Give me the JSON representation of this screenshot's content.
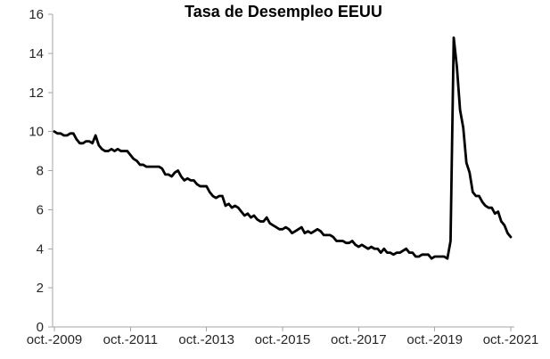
{
  "chart_data": {
    "type": "line",
    "title": "Tasa de Desempleo EEUU",
    "xlabel": "",
    "ylabel": "",
    "grid": false,
    "legend": "none",
    "ylim": [
      0,
      16
    ],
    "y_ticks": [
      0,
      2,
      4,
      6,
      8,
      10,
      12,
      14,
      16
    ],
    "x_tick_labels": [
      "oct.-2009",
      "oct.-2011",
      "oct.-2013",
      "oct.-2015",
      "oct.-2017",
      "oct.-2019",
      "oct.-2021"
    ],
    "x_tick_every_months": 24,
    "x_start": "oct-2009",
    "x_end": "oct-2021",
    "frequency": "monthly",
    "values": [
      10.0,
      9.9,
      9.9,
      9.8,
      9.8,
      9.9,
      9.9,
      9.6,
      9.4,
      9.4,
      9.5,
      9.5,
      9.4,
      9.8,
      9.3,
      9.1,
      9.0,
      9.0,
      9.1,
      9.0,
      9.1,
      9.0,
      9.0,
      9.0,
      8.8,
      8.6,
      8.5,
      8.3,
      8.3,
      8.2,
      8.2,
      8.2,
      8.2,
      8.2,
      8.1,
      7.8,
      7.8,
      7.7,
      7.9,
      8.0,
      7.7,
      7.5,
      7.6,
      7.5,
      7.5,
      7.3,
      7.2,
      7.2,
      7.2,
      6.9,
      6.7,
      6.6,
      6.7,
      6.7,
      6.2,
      6.3,
      6.1,
      6.2,
      6.1,
      5.9,
      5.7,
      5.8,
      5.6,
      5.7,
      5.5,
      5.4,
      5.4,
      5.6,
      5.3,
      5.2,
      5.1,
      5.0,
      5.0,
      5.1,
      5.0,
      4.8,
      4.9,
      5.0,
      5.1,
      4.8,
      4.9,
      4.8,
      4.9,
      5.0,
      4.9,
      4.7,
      4.7,
      4.7,
      4.6,
      4.4,
      4.4,
      4.4,
      4.3,
      4.3,
      4.4,
      4.2,
      4.1,
      4.2,
      4.1,
      4.0,
      4.1,
      4.0,
      4.0,
      3.8,
      4.0,
      3.8,
      3.8,
      3.7,
      3.8,
      3.8,
      3.9,
      4.0,
      3.8,
      3.8,
      3.6,
      3.6,
      3.7,
      3.7,
      3.7,
      3.5,
      3.6,
      3.6,
      3.6,
      3.6,
      3.5,
      4.4,
      14.8,
      13.3,
      11.1,
      10.2,
      8.4,
      7.9,
      6.9,
      6.7,
      6.7,
      6.4,
      6.2,
      6.1,
      6.1,
      5.8,
      5.9,
      5.4,
      5.2,
      4.8,
      4.6
    ],
    "colors": {
      "line": "#000000",
      "axis": "#a6a6a6",
      "tick_labels": "#262626",
      "title": "#000000",
      "background": "#ffffff"
    }
  }
}
